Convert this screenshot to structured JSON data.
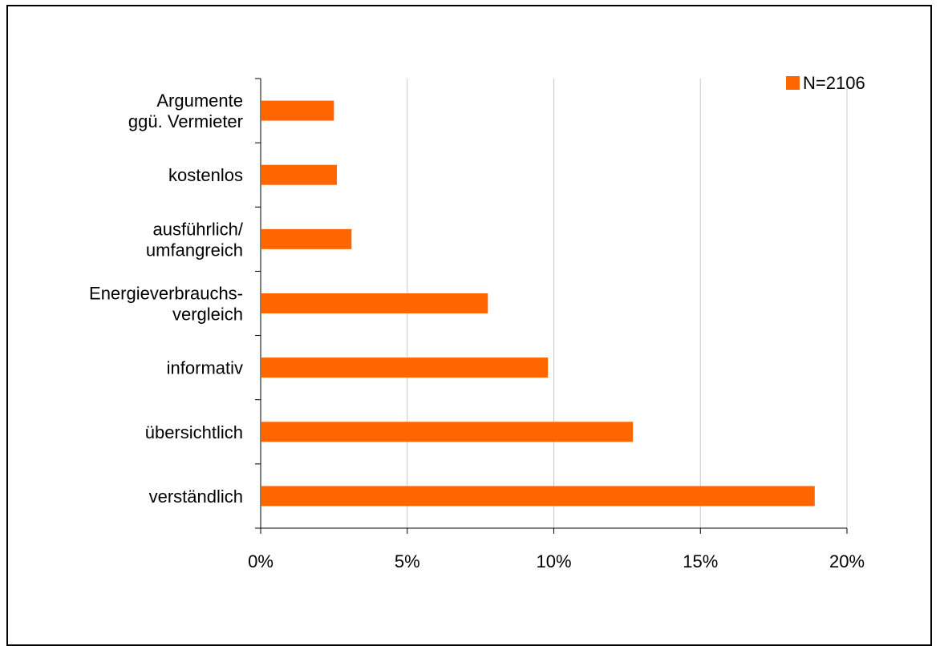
{
  "chart_data": {
    "type": "bar",
    "orientation": "horizontal",
    "categories": [
      [
        "verständlich"
      ],
      [
        "übersichtlich"
      ],
      [
        "informativ"
      ],
      [
        "Energieverbrauchs-",
        "vergleich"
      ],
      [
        "ausführlich/",
        "umfangreich"
      ],
      [
        "kostenlos"
      ],
      [
        "Argumente",
        "ggü. Vermieter"
      ]
    ],
    "series": [
      {
        "name": "N=2106",
        "values": [
          18.9,
          12.7,
          9.8,
          7.75,
          3.1,
          2.6,
          2.5
        ]
      }
    ],
    "xlim": [
      0,
      20
    ],
    "x_ticks": [
      "0%",
      "5%",
      "10%",
      "15%",
      "20%"
    ],
    "x_tick_values": [
      0,
      5,
      10,
      15,
      20
    ],
    "grid": "vertical",
    "legend_position": "top-right",
    "bar_color": "#ff6600",
    "title": "",
    "xlabel": "",
    "ylabel": ""
  }
}
